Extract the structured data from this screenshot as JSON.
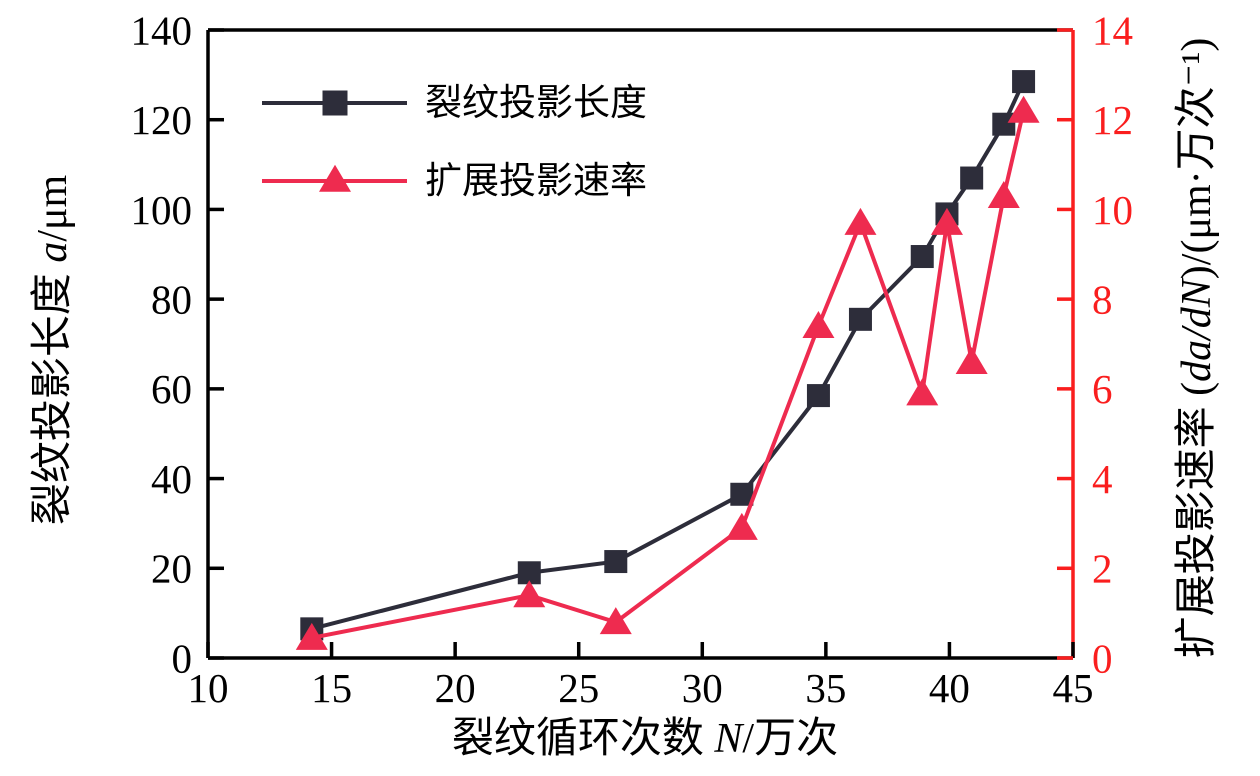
{
  "colors": {
    "frame_black": "#000000",
    "series_dark": "#2d2d3a",
    "series_crimson": "#ee2b4f",
    "right_axis_red": "#fa1e1e",
    "background": "#ffffff"
  },
  "chart_data": {
    "type": "line",
    "dual_axis": true,
    "grid": false,
    "legend_position": "top-left-inside",
    "x_axis": {
      "label_parts": [
        {
          "text": "裂纹循环次数 "
        },
        {
          "text": "N",
          "italic": true
        },
        {
          "text": "/万次"
        }
      ],
      "ticks": [
        10,
        15,
        20,
        25,
        30,
        35,
        40,
        45
      ],
      "range": [
        10,
        45
      ]
    },
    "y_left": {
      "label_parts": [
        {
          "text": "裂纹投影长度 "
        },
        {
          "text": "a",
          "italic": true
        },
        {
          "text": "/μm"
        }
      ],
      "ticks": [
        0,
        20,
        40,
        60,
        80,
        100,
        120,
        140
      ],
      "range": [
        0,
        140
      ],
      "color": "#000000"
    },
    "y_right": {
      "label_parts": [
        {
          "text": "扩展投影速率 ("
        },
        {
          "text": "da/dN",
          "italic": true
        },
        {
          "text": ")/(μm·万次⁻¹)"
        }
      ],
      "ticks": [
        0,
        2,
        4,
        6,
        8,
        10,
        12,
        14
      ],
      "range": [
        0,
        14
      ],
      "color": "#fa1e1e"
    },
    "x": [
      14.2,
      23,
      26.5,
      31.6,
      34.7,
      36.4,
      38.9,
      39.9,
      40.9,
      42.2,
      43
    ],
    "series": [
      {
        "name": "裂纹投影长度",
        "axis": "left",
        "marker": "square",
        "color": "#2d2d3a",
        "values": [
          6.5,
          19,
          21.5,
          36.5,
          58.5,
          75.5,
          89.5,
          99,
          107,
          119,
          128.5
        ]
      },
      {
        "name": "扩展投影速率",
        "axis": "right",
        "marker": "triangle",
        "color": "#ee2b4f",
        "values": [
          0.45,
          1.4,
          0.8,
          2.9,
          7.4,
          9.7,
          5.9,
          9.7,
          6.6,
          10.3,
          12.2
        ]
      }
    ]
  }
}
